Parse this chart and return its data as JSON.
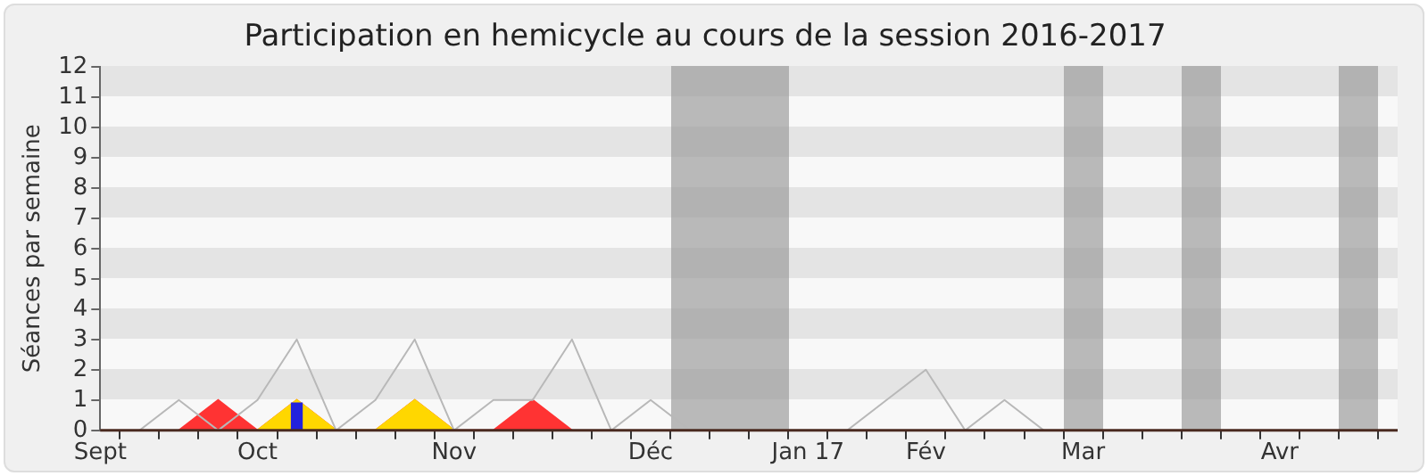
{
  "chart_data": {
    "type": "line",
    "title": "Participation en hemicycle au cours de la session 2016-2017",
    "ylabel": "Séances par semaine",
    "categories": [
      "Sept",
      null,
      null,
      null,
      "Oct",
      null,
      null,
      null,
      null,
      "Nov",
      null,
      null,
      null,
      null,
      "Déc",
      null,
      null,
      null,
      "Jan 17",
      null,
      null,
      "Fév",
      null,
      null,
      null,
      "Mar",
      null,
      null,
      null,
      null,
      "Avr",
      null,
      null,
      null
    ],
    "ylim": [
      0,
      12
    ],
    "yticks": [
      0,
      1,
      2,
      3,
      4,
      5,
      6,
      7,
      8,
      9,
      10,
      11,
      12
    ],
    "legend": false,
    "marker": "none",
    "series": [
      {
        "type": "area",
        "color": "#ff3333",
        "values": [
          null,
          null,
          0,
          1,
          0,
          1,
          0,
          0,
          1,
          0,
          0,
          1,
          0,
          null,
          null,
          null,
          null,
          null,
          null,
          null,
          null,
          null,
          null,
          null,
          null,
          null,
          null,
          null,
          null,
          null,
          null,
          null,
          null,
          null
        ]
      },
      {
        "type": "area",
        "color": "#ffd700",
        "values": [
          null,
          null,
          null,
          null,
          0,
          1,
          0,
          0,
          1,
          0,
          null,
          null,
          null,
          null,
          null,
          null,
          null,
          null,
          null,
          null,
          null,
          null,
          null,
          null,
          null,
          null,
          null,
          null,
          null,
          null,
          null,
          null,
          null,
          null
        ]
      },
      {
        "type": "bar",
        "color": "#2222dd",
        "values": [
          null,
          null,
          null,
          null,
          null,
          0.9,
          null,
          null,
          null,
          null,
          null,
          null,
          null,
          null,
          null,
          null,
          null,
          null,
          null,
          null,
          null,
          null,
          null,
          null,
          null,
          null,
          null,
          null,
          null,
          null,
          null,
          null,
          null,
          null
        ]
      },
      {
        "color": "#b8b8b8",
        "values": [
          null,
          0,
          1,
          0,
          1,
          3,
          0,
          1,
          3,
          0,
          1,
          1,
          3,
          0,
          1,
          0,
          0,
          0,
          0,
          0,
          1,
          2,
          0,
          1,
          0,
          null,
          null,
          null,
          null,
          null,
          null,
          null,
          null,
          null
        ]
      }
    ]
  }
}
